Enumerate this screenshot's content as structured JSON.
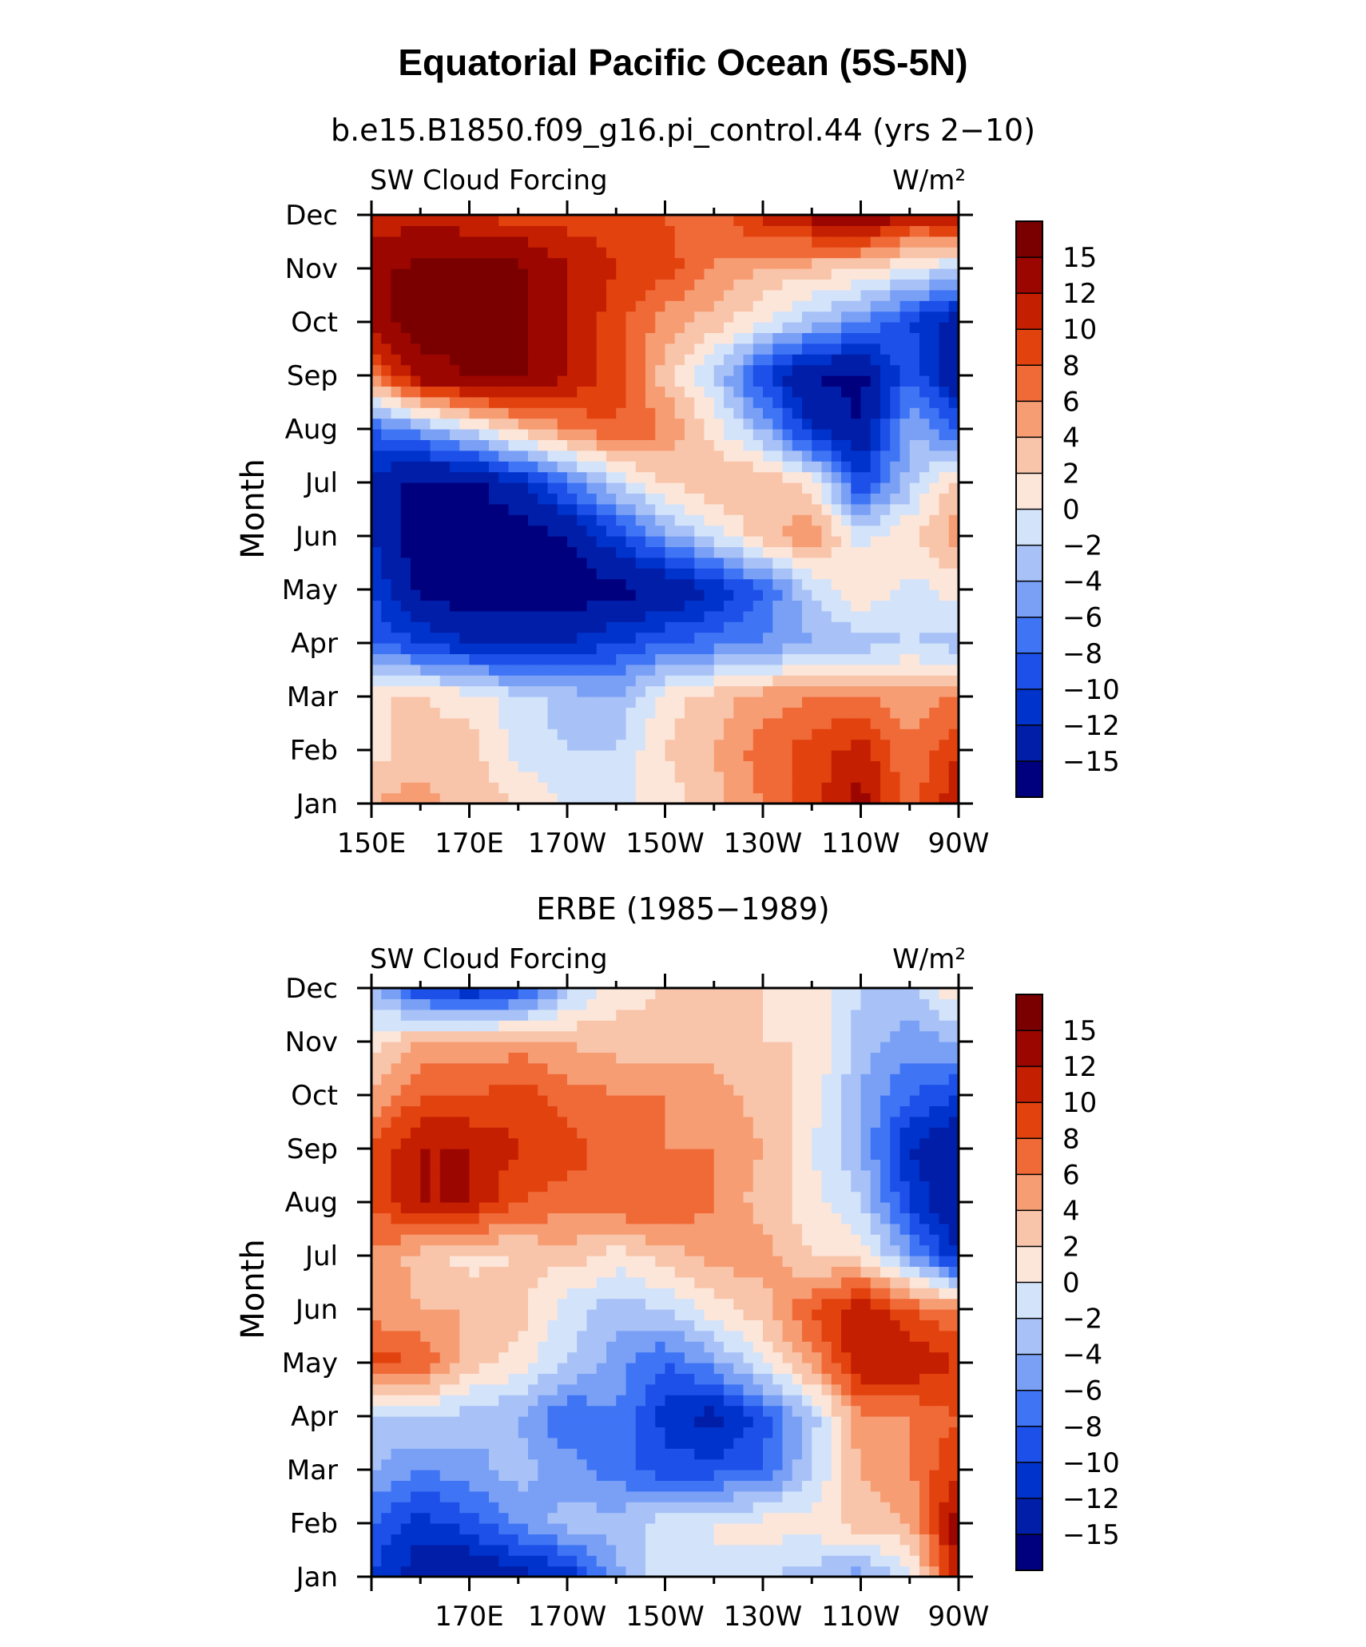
{
  "main_title": "Equatorial Pacific Ocean (5S-5N)",
  "chart_data": [
    {
      "type": "heatmap",
      "title": "b.e15.B1850.f09_g16.pi_control.44 (yrs 2−10)",
      "left_label": "SW Cloud Forcing",
      "right_label": "W/m²",
      "ylabel": "Month",
      "x_labels": [
        "150E",
        "170E",
        "170W",
        "150W",
        "130W",
        "110W",
        "90W"
      ],
      "x_label_lon": [
        150,
        170,
        190,
        210,
        230,
        250,
        270
      ],
      "xlim": [
        150,
        270
      ],
      "months": [
        "Jan",
        "Feb",
        "Mar",
        "Apr",
        "May",
        "Jun",
        "Jul",
        "Aug",
        "Sep",
        "Oct",
        "Nov",
        "Dec"
      ],
      "ylim": [
        1,
        12
      ],
      "x": [
        150,
        160,
        170,
        180,
        190,
        200,
        210,
        220,
        230,
        240,
        250,
        260,
        270
      ],
      "z": [
        [
          4,
          5,
          3,
          2,
          0,
          -1,
          1,
          3,
          6,
          9,
          13,
          7,
          12
        ],
        [
          1,
          3,
          3,
          -1,
          -2,
          -2,
          2,
          4,
          7,
          9,
          11,
          6,
          10
        ],
        [
          2,
          2,
          1,
          -1,
          -3,
          -4,
          1,
          3,
          5,
          6,
          6,
          5,
          6
        ],
        [
          -8,
          -10,
          -12,
          -13,
          -12,
          -10,
          -8,
          -7,
          -6,
          -4,
          -3,
          -2,
          -3
        ],
        [
          -10,
          -16,
          -17,
          -17,
          -17,
          -16,
          -15,
          -12,
          -8,
          -2,
          2,
          -1,
          1
        ],
        [
          -12,
          -17,
          -17,
          -17,
          -15,
          -10,
          -5,
          -1,
          3,
          6,
          -1,
          2,
          5
        ],
        [
          -13,
          -16,
          -16,
          -12,
          -7,
          -2,
          2,
          4,
          4,
          1,
          -10,
          -3,
          3
        ],
        [
          -8,
          -5,
          -1,
          3,
          6,
          8,
          6,
          1,
          -4,
          -12,
          -15,
          -4,
          -8
        ],
        [
          6,
          14,
          15,
          16,
          12,
          9,
          3,
          -2,
          -10,
          -15,
          -16,
          -8,
          -15
        ],
        [
          14,
          16,
          16,
          16,
          12,
          9,
          5,
          3,
          0,
          -3,
          -6,
          -10,
          -14
        ],
        [
          14,
          16,
          16,
          16,
          12,
          10,
          9,
          6,
          4,
          3,
          2,
          0,
          -2
        ],
        [
          10,
          11,
          10,
          9,
          9,
          9,
          8,
          6,
          11,
          13,
          16,
          11,
          13
        ]
      ],
      "colorbar_labels": [
        "15",
        "12",
        "10",
        "8",
        "6",
        "4",
        "2",
        "0",
        "−2",
        "−4",
        "−6",
        "−8",
        "−10",
        "−12",
        "−15"
      ]
    },
    {
      "type": "heatmap",
      "title": "ERBE (1985−1989)",
      "left_label": "SW Cloud Forcing",
      "right_label": "W/m²",
      "ylabel": "Month",
      "x_labels": [
        "170E",
        "170W",
        "150W",
        "130W",
        "110W",
        "90W"
      ],
      "x_label_lon": [
        170,
        190,
        210,
        230,
        250,
        270
      ],
      "xlim": [
        150,
        270
      ],
      "months": [
        "Jan",
        "Feb",
        "Mar",
        "Apr",
        "May",
        "Jun",
        "Jul",
        "Aug",
        "Sep",
        "Oct",
        "Nov",
        "Dec"
      ],
      "ylim": [
        1,
        12
      ],
      "x": [
        150,
        160,
        170,
        180,
        190,
        200,
        210,
        220,
        230,
        240,
        250,
        260,
        270
      ],
      "z": [
        [
          -10,
          -14,
          -15,
          -13,
          -12,
          -5,
          0,
          0,
          -2,
          -3,
          -5,
          -1,
          12
        ],
        [
          -8,
          -11,
          -9,
          -6,
          -3,
          -3,
          -1,
          0,
          1,
          1,
          3,
          4,
          14
        ],
        [
          -4,
          -6,
          -5,
          -3,
          -5,
          -7,
          -9,
          -9,
          -8,
          -2,
          4,
          6,
          10
        ],
        [
          -2,
          -2,
          -3,
          -4,
          -8,
          -6,
          -11,
          -13,
          -9,
          -3,
          6,
          6,
          8
        ],
        [
          9,
          8,
          3,
          1,
          -2,
          -5,
          -8,
          -5,
          0,
          5,
          12,
          12,
          10
        ],
        [
          5,
          4,
          4,
          3,
          -1,
          -3,
          -2,
          1,
          3,
          8,
          12,
          8,
          6
        ],
        [
          6,
          3,
          1,
          2,
          3,
          1,
          3,
          5,
          5,
          2,
          1,
          -5,
          -12
        ],
        [
          8,
          12,
          12,
          8,
          7,
          8,
          8,
          6,
          3,
          1,
          -2,
          -10,
          -15
        ],
        [
          8,
          12,
          12,
          10,
          9,
          7,
          6,
          6,
          4,
          0,
          -4,
          -12,
          -15
        ],
        [
          4,
          8,
          8,
          9,
          7,
          6,
          6,
          5,
          3,
          1,
          -4,
          -8,
          -10
        ],
        [
          1,
          4,
          4,
          5,
          4,
          3,
          3,
          3,
          2,
          2,
          -3,
          -5,
          -4
        ],
        [
          -3,
          -10,
          -12,
          -10,
          -3,
          1,
          2,
          2,
          2,
          1,
          -2,
          -3,
          2
        ]
      ],
      "colorbar_labels": [
        "15",
        "12",
        "10",
        "8",
        "6",
        "4",
        "2",
        "0",
        "−2",
        "−4",
        "−6",
        "−8",
        "−10",
        "−12",
        "−15"
      ]
    }
  ],
  "colors": {
    "levels_bottom_to_top": [
      "#00007f",
      "#001ea8",
      "#0033cc",
      "#1c50e8",
      "#3f75f5",
      "#7aa0f6",
      "#a8c2f7",
      "#d3e3fa",
      "#fce6da",
      "#f9c5aa",
      "#f69d74",
      "#f06a38",
      "#e2420e",
      "#c41f00",
      "#9c0600",
      "#7a0000"
    ],
    "thresholds": [
      -15,
      -12,
      -10,
      -8,
      -6,
      -4,
      -2,
      0,
      2,
      4,
      6,
      8,
      10,
      12,
      15
    ]
  }
}
